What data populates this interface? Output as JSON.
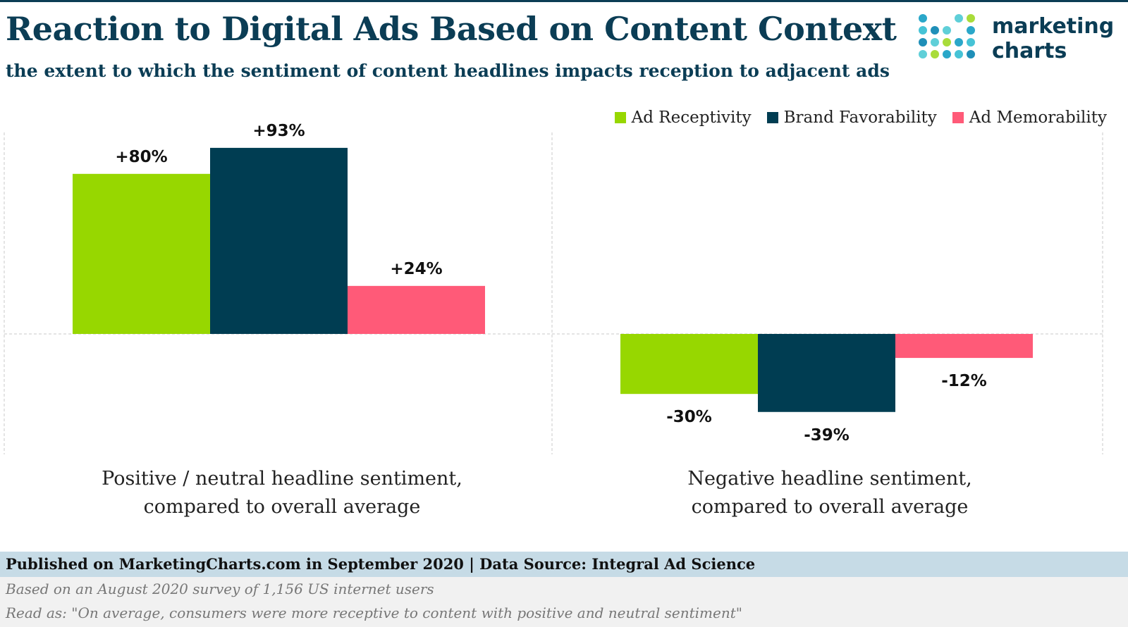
{
  "header": {
    "title": "Reaction to Digital Ads Based on Content Context",
    "subtitle": "the extent to which the sentiment of content headlines impacts reception to adjacent ads"
  },
  "logo": {
    "line1": "marketing",
    "line2": "charts"
  },
  "chart_data": {
    "type": "bar",
    "categories": [
      "Positive / neutral headline sentiment, compared to overall average",
      "Negative  headline sentiment, compared to overall average"
    ],
    "category_lines": [
      [
        "Positive / neutral headline sentiment,",
        "compared to overall average"
      ],
      [
        "Negative  headline sentiment,",
        "compared to overall average"
      ]
    ],
    "series": [
      {
        "name": "Ad Receptivity",
        "color": "#97d700",
        "values": [
          80,
          -30
        ],
        "labels": [
          "+80%",
          "-30%"
        ]
      },
      {
        "name": "Brand Favorability",
        "color": "#003d52",
        "values": [
          93,
          -39
        ],
        "labels": [
          "+93%",
          "-39%"
        ]
      },
      {
        "name": "Ad Memorability",
        "color": "#ff5a78",
        "values": [
          24,
          -12
        ],
        "labels": [
          "+24%",
          "-12%"
        ]
      }
    ],
    "ylim": [
      -55,
      100
    ],
    "grid": "dashed group dividers and zero line",
    "legend": "top-right"
  },
  "footer": {
    "published": "Published on MarketingCharts.com in September 2020 | Data Source: Integral Ad Science",
    "note1": "Based on an August 2020 survey of 1,156 US internet users",
    "note2": "Read as: \"On average, consumers were more receptive to content with positive and neutral sentiment\""
  },
  "colors": {
    "brand": "#0b3d55",
    "footer_bar": "#c6dbe6",
    "footer_notes": "#f1f1f1"
  }
}
